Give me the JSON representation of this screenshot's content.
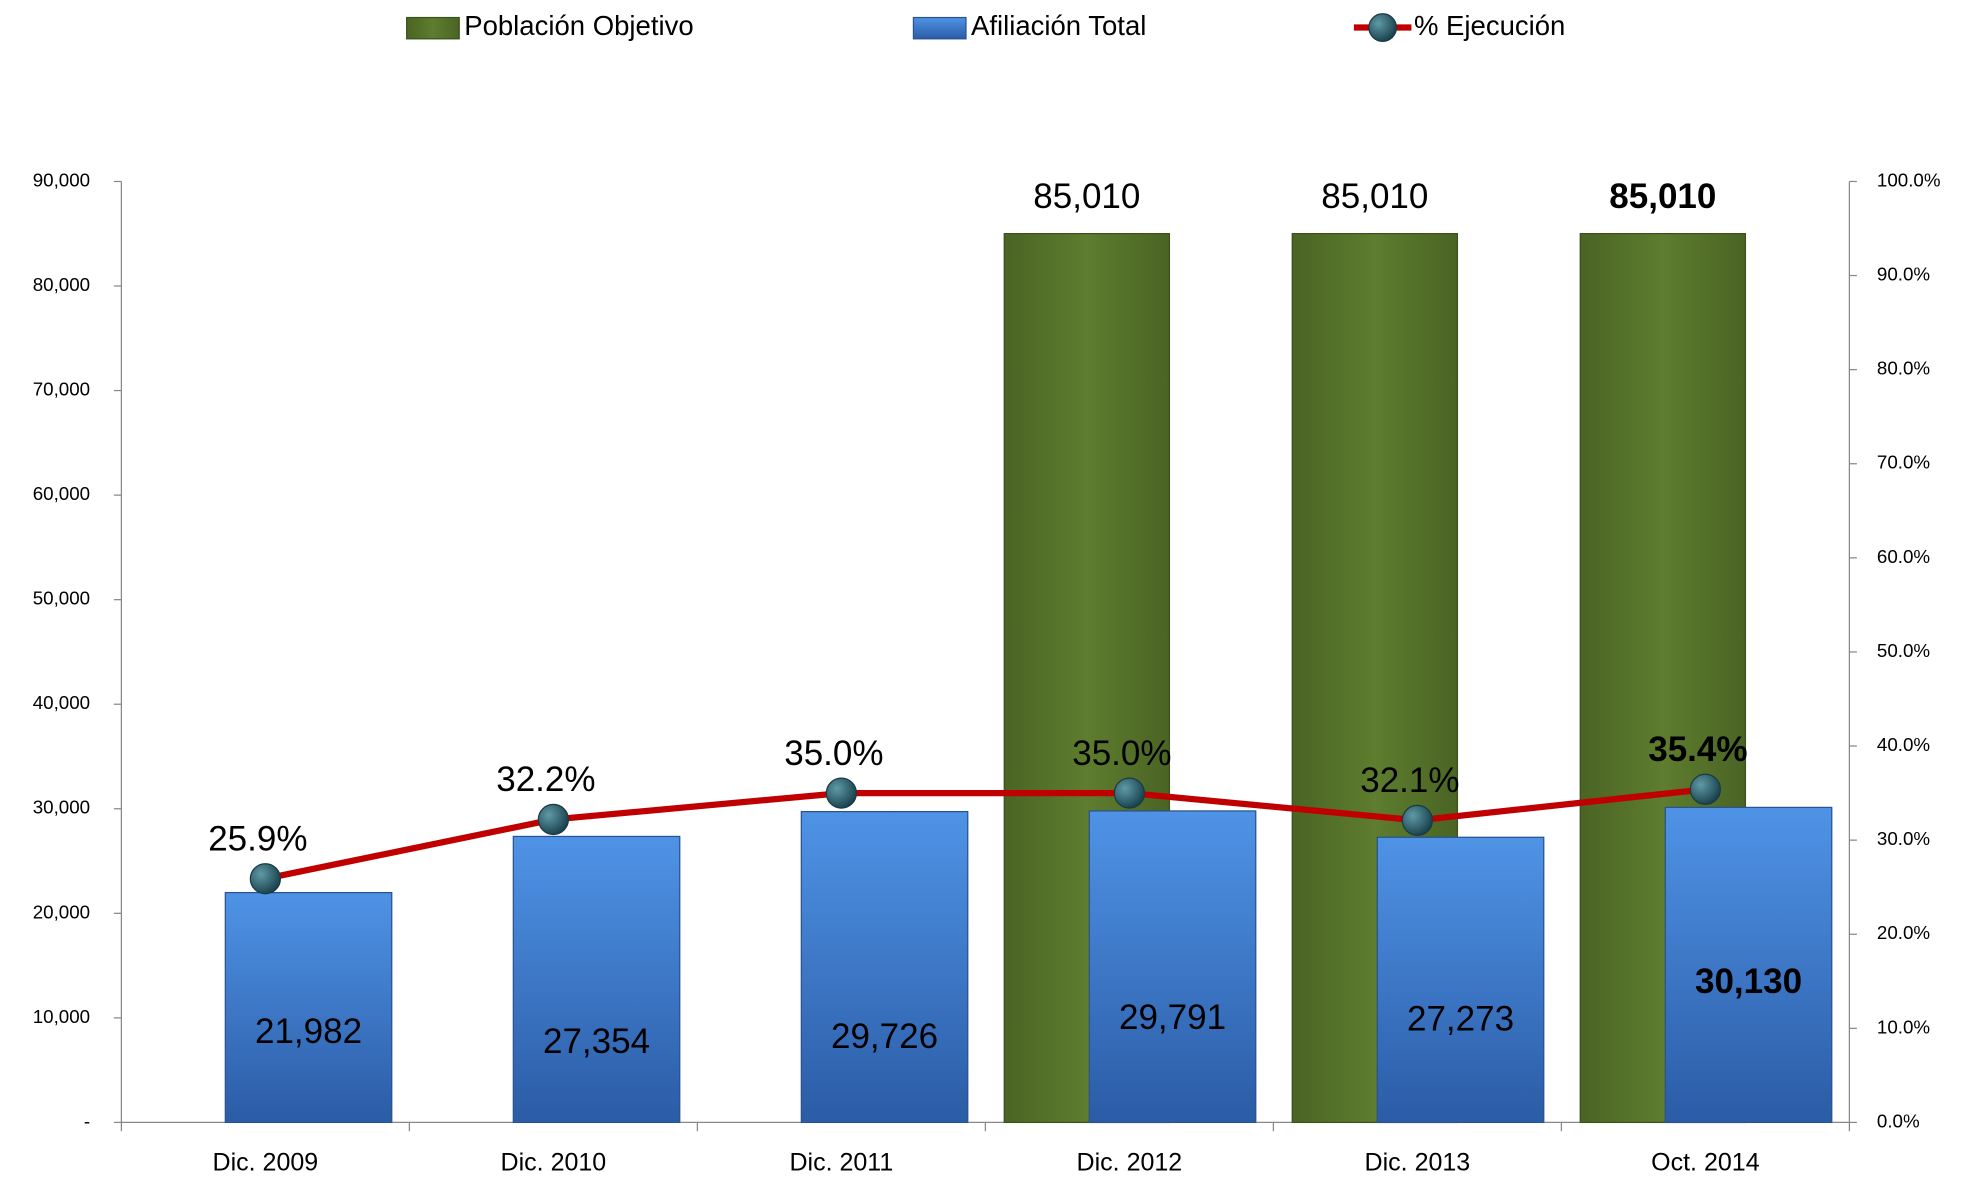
{
  "chart_data": {
    "type": "bar",
    "categories": [
      "Dic. 2009",
      "Dic. 2010",
      "Dic. 2011",
      "Dic. 2012",
      "Dic. 2013",
      "Oct. 2014"
    ],
    "series": [
      {
        "name": "Población Objetivo",
        "type": "bar",
        "color": "#5a7a2c",
        "values": [
          null,
          null,
          null,
          85010,
          85010,
          85010
        ],
        "value_labels": [
          null,
          null,
          null,
          "85,010",
          "85,010",
          "85,010"
        ]
      },
      {
        "name": "Afiliación Total",
        "type": "bar",
        "color": "#3f7fd6",
        "values": [
          21982,
          27354,
          29726,
          29791,
          27273,
          30130
        ],
        "value_labels": [
          "21,982",
          "27,354",
          "29,726",
          "29,791",
          "27,273",
          "30,130"
        ]
      },
      {
        "name": "% Ejecución",
        "type": "line",
        "axis": "y2",
        "color": "#c00000",
        "values": [
          25.9,
          32.2,
          35.0,
          35.0,
          32.1,
          35.4
        ],
        "value_labels": [
          "25.9%",
          "32.2%",
          "35.0%",
          "35.0%",
          "32.1%",
          "35.4%"
        ]
      }
    ],
    "ylim": [
      0,
      90000
    ],
    "yticks": [
      {
        "value": 0,
        "label": "-"
      },
      {
        "value": 10000,
        "label": "10,000"
      },
      {
        "value": 20000,
        "label": "20,000"
      },
      {
        "value": 30000,
        "label": "30,000"
      },
      {
        "value": 40000,
        "label": "40,000"
      },
      {
        "value": 50000,
        "label": "50,000"
      },
      {
        "value": 60000,
        "label": "60,000"
      },
      {
        "value": 70000,
        "label": "70,000"
      },
      {
        "value": 80000,
        "label": "80,000"
      },
      {
        "value": 90000,
        "label": "90,000"
      }
    ],
    "y2lim": [
      0,
      100
    ],
    "y2ticks": [
      {
        "value": 0,
        "label": "0.0%"
      },
      {
        "value": 10,
        "label": "10.0%"
      },
      {
        "value": 20,
        "label": "20.0%"
      },
      {
        "value": 30,
        "label": "30.0%"
      },
      {
        "value": 40,
        "label": "40.0%"
      },
      {
        "value": 50,
        "label": "50.0%"
      },
      {
        "value": 60,
        "label": "60.0%"
      },
      {
        "value": 70,
        "label": "70.0%"
      },
      {
        "value": 80,
        "label": "80.0%"
      },
      {
        "value": 90,
        "label": "90.0%"
      },
      {
        "value": 100,
        "label": "100.0%"
      }
    ],
    "legend": "top",
    "grid": false
  }
}
